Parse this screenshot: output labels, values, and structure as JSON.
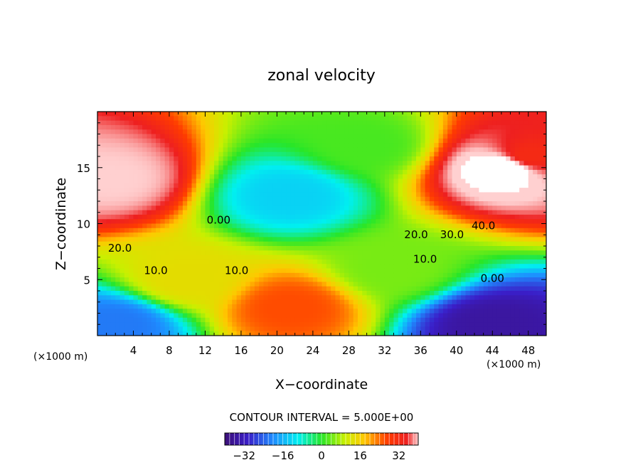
{
  "chart_data": {
    "type": "heatmap",
    "title": "zonal velocity",
    "xlabel": "X−coordinate",
    "ylabel": "Z−coordinate",
    "x_unit_left": "(×1000 m)",
    "x_unit_right": "(×1000 m)",
    "xlim": [
      0,
      50
    ],
    "ylim": [
      0,
      20
    ],
    "x_ticks": [
      4,
      8,
      12,
      16,
      20,
      24,
      28,
      32,
      36,
      40,
      44,
      48
    ],
    "x_tick_labels": [
      "4",
      "8",
      "12",
      "16",
      "20",
      "24",
      "28",
      "32",
      "36",
      "40",
      "44",
      "48"
    ],
    "y_ticks": [
      5,
      10,
      15
    ],
    "y_tick_labels": [
      "5",
      "10",
      "15"
    ],
    "contour_interval_text": "CONTOUR INTERVAL = 5.000E+00",
    "contour_interval": 5,
    "contour_labels": [
      {
        "text": "40.0",
        "x": 43.0,
        "z": 9.5
      },
      {
        "text": "30.0",
        "x": 39.5,
        "z": 8.7
      },
      {
        "text": "20.0",
        "x": 35.5,
        "z": 8.7
      },
      {
        "text": "20.0",
        "x": 2.5,
        "z": 7.5
      },
      {
        "text": "10.0",
        "x": 6.5,
        "z": 5.5
      },
      {
        "text": "10.0",
        "x": 15.5,
        "z": 5.5
      },
      {
        "text": "10.0",
        "x": 36.5,
        "z": 6.5
      },
      {
        "text": "0.00",
        "x": 13.5,
        "z": 10.0
      },
      {
        "text": "0.00",
        "x": 44.0,
        "z": 4.8
      }
    ],
    "field_features": [
      {
        "x": 1.5,
        "z": 14.0,
        "value": 42
      },
      {
        "x": 45.5,
        "z": 15.0,
        "value": 48
      },
      {
        "x": 48.0,
        "z": 16.0,
        "value": 32
      },
      {
        "x": 21.5,
        "z": 12.5,
        "value": -13
      },
      {
        "x": 21.5,
        "z": 2.5,
        "value": 26
      },
      {
        "x": 44.0,
        "z": 1.0,
        "value": -36
      },
      {
        "x": 2.0,
        "z": 1.0,
        "value": -22
      },
      {
        "x": 30.0,
        "z": 17.0,
        "value": 2
      },
      {
        "x": 10.0,
        "z": 5.0,
        "value": 14
      },
      {
        "x": 33.0,
        "z": 6.0,
        "value": 5
      }
    ],
    "colorbar": {
      "range": [
        -40,
        40
      ],
      "ticks": [
        -32,
        -16,
        0,
        16,
        32
      ],
      "tick_labels": [
        "−32",
        "−16",
        "0",
        "16",
        "32"
      ]
    }
  }
}
